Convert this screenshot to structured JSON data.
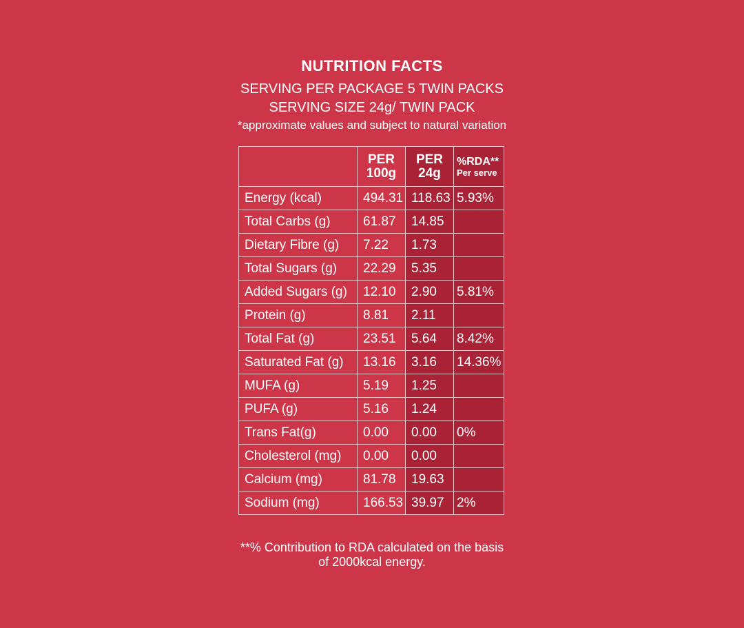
{
  "header": {
    "title": "NUTRITION FACTS",
    "serving_per_package": "SERVING PER PACKAGE 5 TWIN PACKS",
    "serving_size": "SERVING SIZE 24g/ TWIN PACK",
    "note": "*approximate values and subject to natural variation"
  },
  "table": {
    "columns": {
      "per100_line1": "PER",
      "per100_line2": "100g",
      "per24_line1": "PER",
      "per24_line2": "24g",
      "rda_line1": "%RDA**",
      "rda_line2": "Per serve"
    },
    "rows": [
      {
        "nutrient": "Energy (kcal)",
        "per100": "494.31",
        "per24": "118.63",
        "rda": "5.93%"
      },
      {
        "nutrient": "Total Carbs (g)",
        "per100": "61.87",
        "per24": "14.85",
        "rda": ""
      },
      {
        "nutrient": "Dietary Fibre (g)",
        "per100": "7.22",
        "per24": "1.73",
        "rda": ""
      },
      {
        "nutrient": "Total Sugars (g)",
        "per100": "22.29",
        "per24": "5.35",
        "rda": ""
      },
      {
        "nutrient": "Added Sugars (g)",
        "per100": "12.10",
        "per24": "2.90",
        "rda": "5.81%"
      },
      {
        "nutrient": "Protein (g)",
        "per100": "8.81",
        "per24": "2.11",
        "rda": ""
      },
      {
        "nutrient": "Total Fat (g)",
        "per100": "23.51",
        "per24": "5.64",
        "rda": "8.42%"
      },
      {
        "nutrient": "Saturated Fat (g)",
        "per100": "13.16",
        "per24": "3.16",
        "rda": "14.36%"
      },
      {
        "nutrient": "MUFA (g)",
        "per100": "5.19",
        "per24": "1.25",
        "rda": ""
      },
      {
        "nutrient": "PUFA (g)",
        "per100": "5.16",
        "per24": "1.24",
        "rda": ""
      },
      {
        "nutrient": "Trans Fat(g)",
        "per100": "0.00",
        "per24": "0.00",
        "rda": "0%"
      },
      {
        "nutrient": "Cholesterol (mg)",
        "per100": "0.00",
        "per24": "0.00",
        "rda": ""
      },
      {
        "nutrient": "Calcium (mg)",
        "per100": "81.78",
        "per24": "19.63",
        "rda": ""
      },
      {
        "nutrient": "Sodium (mg)",
        "per100": "166.53",
        "per24": "39.97",
        "rda": "2%"
      }
    ]
  },
  "footer": {
    "line1": "**% Contribution to RDA calculated on the basis",
    "line2": "of 2000kcal energy."
  },
  "colors": {
    "background": "#cd3548",
    "shaded_column": "#a92236",
    "text": "#ffffff"
  }
}
